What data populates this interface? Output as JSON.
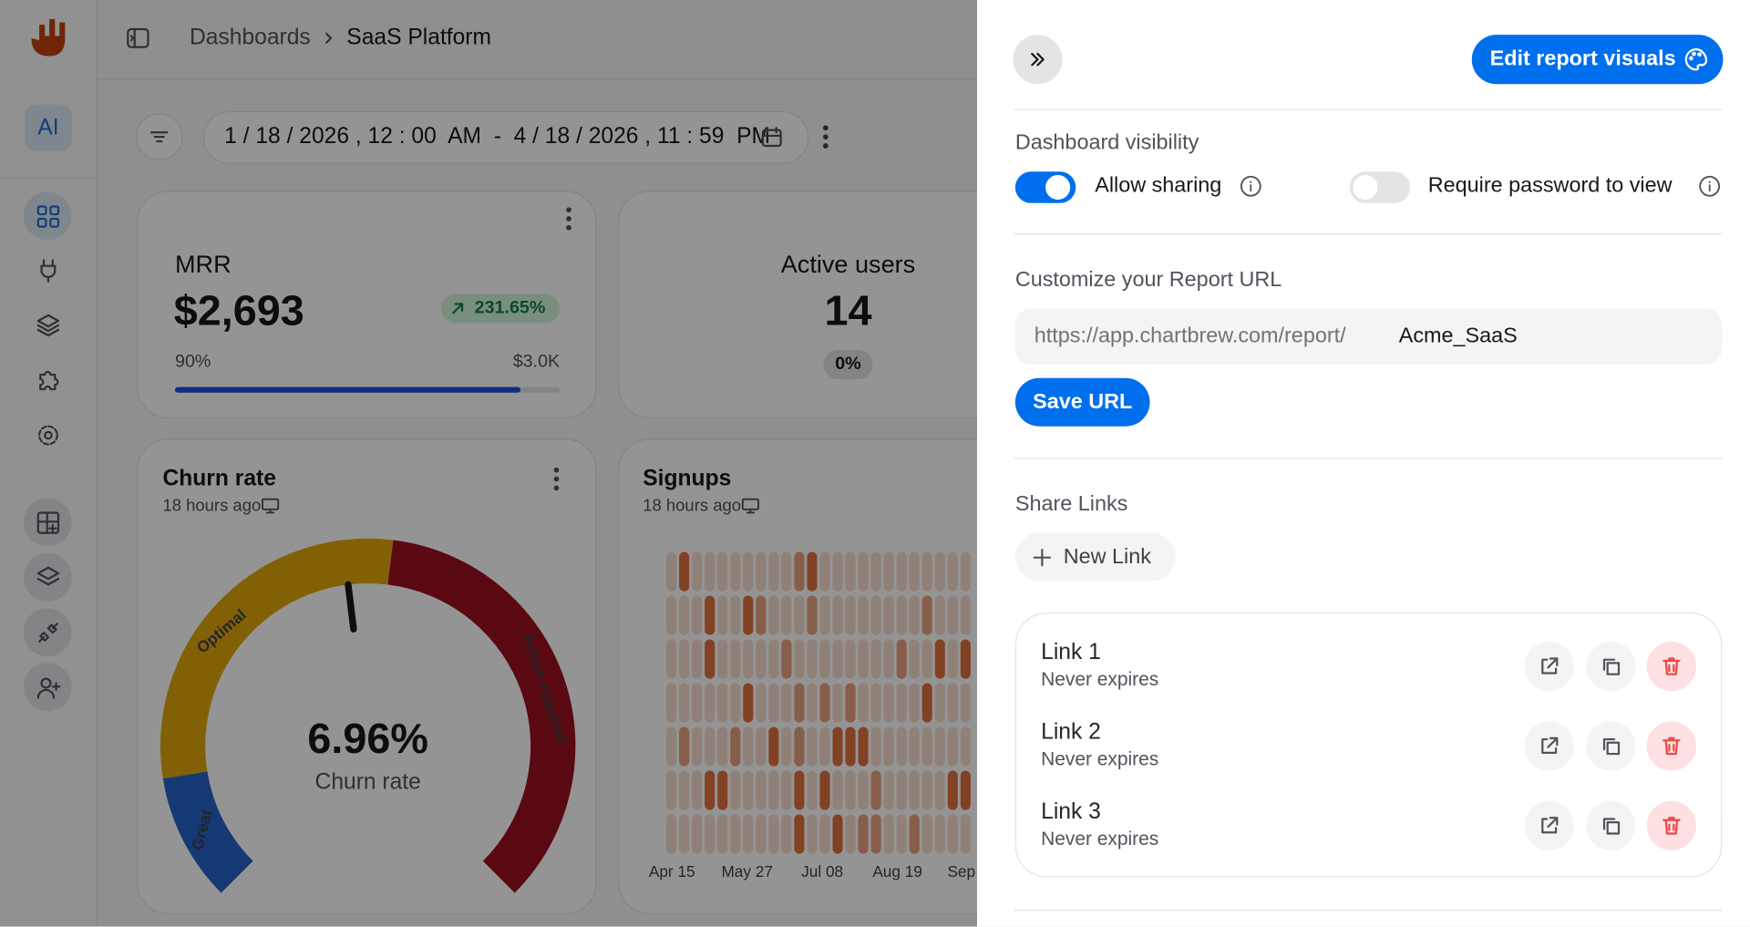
{
  "header": {
    "breadcrumb": [
      "Dashboards",
      "SaaS Platform"
    ]
  },
  "sidebar": {
    "ai_label": "AI"
  },
  "toolbar": {
    "date_range": "1 / 18 / 2026 , 12 : 00  AM  -  4 / 18 / 2026 , 11 : 59  PM"
  },
  "cards": {
    "mrr": {
      "title": "MRR",
      "value": "$2,693",
      "change": "231.65%",
      "progress_label": "90%",
      "target": "$3.0K"
    },
    "active_users": {
      "title": "Active users",
      "value": "14",
      "change": "0%"
    },
    "churn": {
      "title": "Churn rate",
      "updated": "18 hours ago",
      "value": "6.96%",
      "caption": "Churn rate",
      "zones": [
        "Great",
        "Optimal",
        "Action required"
      ]
    },
    "signups": {
      "title": "Signups",
      "updated": "18 hours ago",
      "x_labels": [
        "Apr 15",
        "May 27",
        "Jul 08",
        "Aug 19",
        "Sep"
      ]
    }
  },
  "panel": {
    "edit_button": "Edit report visuals",
    "visibility": {
      "title": "Dashboard visibility",
      "allow_sharing": "Allow sharing",
      "require_password": "Require password to view"
    },
    "url": {
      "title": "Customize your Report URL",
      "prefix": "https://app.chartbrew.com/report/",
      "slug": "Acme_SaaS",
      "save": "Save URL"
    },
    "share": {
      "title": "Share Links",
      "new_link": "New Link",
      "links": [
        {
          "name": "Link 1",
          "expiry": "Never expires"
        },
        {
          "name": "Link 2",
          "expiry": "Never expires"
        },
        {
          "name": "Link 3",
          "expiry": "Never expires"
        }
      ]
    }
  }
}
